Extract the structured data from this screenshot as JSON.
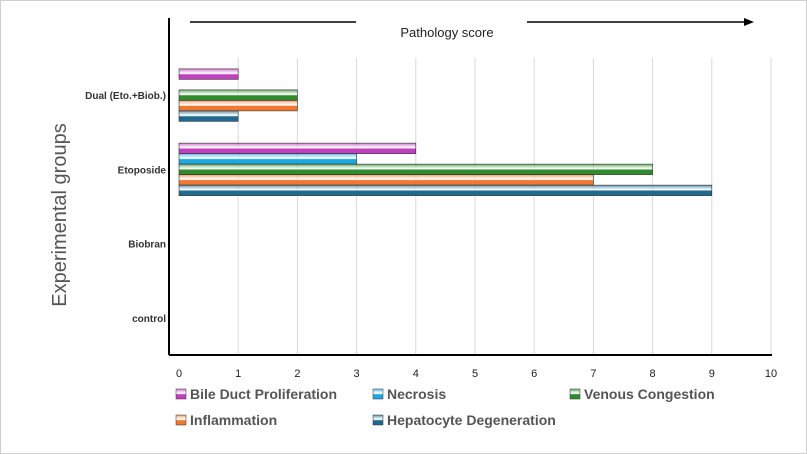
{
  "chart_data": {
    "type": "bar",
    "orientation": "horizontal",
    "xlabel": "Pathology score",
    "ylabel": "Experimental groups",
    "xlim": [
      0,
      10
    ],
    "xticks": [
      "0",
      "1",
      "2",
      "3",
      "4",
      "5",
      "6",
      "7",
      "8",
      "9",
      "10"
    ],
    "categories": [
      "control",
      "Biobran",
      "Etoposide",
      "Dual (Eto.+Biob.)"
    ],
    "grid": "vertical",
    "legend_position": "bottom",
    "series": [
      {
        "name": "Bile Duct Proliferation",
        "color": "#c040c0",
        "values": [
          0,
          0,
          4,
          1
        ]
      },
      {
        "name": "Necrosis",
        "color": "#1fa8e0",
        "values": [
          0,
          0,
          3,
          0
        ]
      },
      {
        "name": "Venous Congestion",
        "color": "#2e8b2e",
        "values": [
          0,
          0,
          8,
          2
        ]
      },
      {
        "name": "Inflammation",
        "color": "#f07830",
        "values": [
          0,
          0,
          7,
          2
        ]
      },
      {
        "name": "Hepatocyte Degeneration",
        "color": "#1f6a90",
        "values": [
          0,
          0,
          9,
          1
        ]
      }
    ]
  }
}
